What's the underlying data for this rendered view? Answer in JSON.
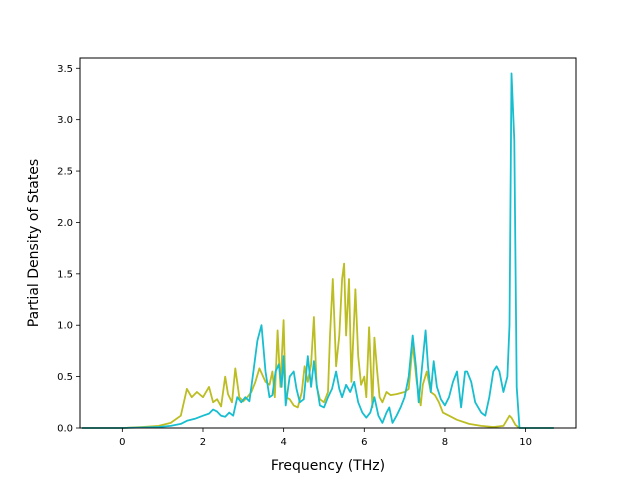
{
  "chart_data": {
    "type": "line",
    "title": "",
    "xlabel": "Frequency (THz)",
    "ylabel": "Partial Density of States",
    "xlim": [
      -1.05,
      11.25
    ],
    "ylim": [
      0.0,
      3.6
    ],
    "xticks": [
      0,
      2,
      4,
      6,
      8,
      10
    ],
    "xtick_labels": [
      "0",
      "2",
      "4",
      "6",
      "8",
      "10"
    ],
    "yticks": [
      0.0,
      0.5,
      1.0,
      1.5,
      2.0,
      2.5,
      3.0,
      3.5
    ],
    "ytick_labels": [
      "0.0",
      "0.5",
      "1.0",
      "1.5",
      "2.0",
      "2.5",
      "3.0",
      "3.5"
    ],
    "grid": false,
    "legend": "none",
    "series": [
      {
        "color": "#bcbd22",
        "points": [
          [
            -1.0,
            0.0
          ],
          [
            0.0,
            0.0
          ],
          [
            0.5,
            0.01
          ],
          [
            0.9,
            0.02
          ],
          [
            1.2,
            0.05
          ],
          [
            1.45,
            0.12
          ],
          [
            1.6,
            0.38
          ],
          [
            1.72,
            0.3
          ],
          [
            1.85,
            0.35
          ],
          [
            2.0,
            0.3
          ],
          [
            2.15,
            0.4
          ],
          [
            2.25,
            0.25
          ],
          [
            2.35,
            0.28
          ],
          [
            2.45,
            0.21
          ],
          [
            2.55,
            0.5
          ],
          [
            2.62,
            0.33
          ],
          [
            2.72,
            0.25
          ],
          [
            2.8,
            0.58
          ],
          [
            2.9,
            0.3
          ],
          [
            3.0,
            0.26
          ],
          [
            3.1,
            0.3
          ],
          [
            3.2,
            0.35
          ],
          [
            3.3,
            0.45
          ],
          [
            3.4,
            0.58
          ],
          [
            3.55,
            0.45
          ],
          [
            3.65,
            0.42
          ],
          [
            3.72,
            0.55
          ],
          [
            3.78,
            0.3
          ],
          [
            3.85,
            0.95
          ],
          [
            3.92,
            0.4
          ],
          [
            4.0,
            1.05
          ],
          [
            4.05,
            0.3
          ],
          [
            4.15,
            0.28
          ],
          [
            4.25,
            0.22
          ],
          [
            4.35,
            0.2
          ],
          [
            4.45,
            0.35
          ],
          [
            4.52,
            0.6
          ],
          [
            4.6,
            0.45
          ],
          [
            4.68,
            0.62
          ],
          [
            4.75,
            1.08
          ],
          [
            4.82,
            0.4
          ],
          [
            4.9,
            0.28
          ],
          [
            5.0,
            0.25
          ],
          [
            5.1,
            0.35
          ],
          [
            5.15,
            0.9
          ],
          [
            5.22,
            1.45
          ],
          [
            5.3,
            0.6
          ],
          [
            5.38,
            0.9
          ],
          [
            5.45,
            1.45
          ],
          [
            5.5,
            1.6
          ],
          [
            5.55,
            0.9
          ],
          [
            5.62,
            1.45
          ],
          [
            5.68,
            0.45
          ],
          [
            5.78,
            1.35
          ],
          [
            5.85,
            0.7
          ],
          [
            5.92,
            0.42
          ],
          [
            6.0,
            0.5
          ],
          [
            6.05,
            0.3
          ],
          [
            6.12,
            0.98
          ],
          [
            6.2,
            0.2
          ],
          [
            6.25,
            0.88
          ],
          [
            6.32,
            0.55
          ],
          [
            6.38,
            0.3
          ],
          [
            6.45,
            0.25
          ],
          [
            6.55,
            0.35
          ],
          [
            6.65,
            0.32
          ],
          [
            6.8,
            0.33
          ],
          [
            7.0,
            0.35
          ],
          [
            7.1,
            0.38
          ],
          [
            7.2,
            0.82
          ],
          [
            7.3,
            0.45
          ],
          [
            7.4,
            0.22
          ],
          [
            7.45,
            0.42
          ],
          [
            7.55,
            0.55
          ],
          [
            7.65,
            0.35
          ],
          [
            7.75,
            0.32
          ],
          [
            7.85,
            0.25
          ],
          [
            7.95,
            0.15
          ],
          [
            8.1,
            0.12
          ],
          [
            8.3,
            0.08
          ],
          [
            8.6,
            0.04
          ],
          [
            8.9,
            0.02
          ],
          [
            9.2,
            0.01
          ],
          [
            9.45,
            0.02
          ],
          [
            9.6,
            0.12
          ],
          [
            9.65,
            0.1
          ],
          [
            9.75,
            0.03
          ],
          [
            9.85,
            0.0
          ],
          [
            10.0,
            0.0
          ],
          [
            10.7,
            0.0
          ]
        ]
      },
      {
        "color": "#17becf",
        "points": [
          [
            -1.0,
            0.0
          ],
          [
            0.0,
            0.0
          ],
          [
            0.5,
            0.005
          ],
          [
            0.9,
            0.01
          ],
          [
            1.2,
            0.02
          ],
          [
            1.45,
            0.04
          ],
          [
            1.6,
            0.07
          ],
          [
            1.8,
            0.09
          ],
          [
            2.0,
            0.12
          ],
          [
            2.15,
            0.14
          ],
          [
            2.25,
            0.18
          ],
          [
            2.35,
            0.16
          ],
          [
            2.45,
            0.12
          ],
          [
            2.55,
            0.11
          ],
          [
            2.65,
            0.15
          ],
          [
            2.75,
            0.12
          ],
          [
            2.85,
            0.3
          ],
          [
            2.95,
            0.25
          ],
          [
            3.05,
            0.3
          ],
          [
            3.15,
            0.26
          ],
          [
            3.25,
            0.55
          ],
          [
            3.35,
            0.85
          ],
          [
            3.45,
            1.0
          ],
          [
            3.55,
            0.55
          ],
          [
            3.65,
            0.3
          ],
          [
            3.72,
            0.32
          ],
          [
            3.8,
            0.55
          ],
          [
            3.88,
            0.62
          ],
          [
            3.95,
            0.4
          ],
          [
            4.0,
            0.7
          ],
          [
            4.05,
            0.22
          ],
          [
            4.15,
            0.5
          ],
          [
            4.25,
            0.55
          ],
          [
            4.32,
            0.38
          ],
          [
            4.4,
            0.25
          ],
          [
            4.5,
            0.28
          ],
          [
            4.6,
            0.7
          ],
          [
            4.68,
            0.4
          ],
          [
            4.75,
            0.65
          ],
          [
            4.82,
            0.42
          ],
          [
            4.9,
            0.22
          ],
          [
            5.0,
            0.2
          ],
          [
            5.1,
            0.3
          ],
          [
            5.2,
            0.38
          ],
          [
            5.3,
            0.55
          ],
          [
            5.38,
            0.38
          ],
          [
            5.45,
            0.3
          ],
          [
            5.55,
            0.42
          ],
          [
            5.65,
            0.35
          ],
          [
            5.75,
            0.45
          ],
          [
            5.85,
            0.25
          ],
          [
            5.95,
            0.15
          ],
          [
            6.05,
            0.1
          ],
          [
            6.15,
            0.15
          ],
          [
            6.25,
            0.3
          ],
          [
            6.35,
            0.12
          ],
          [
            6.45,
            0.05
          ],
          [
            6.55,
            0.15
          ],
          [
            6.62,
            0.2
          ],
          [
            6.7,
            0.05
          ],
          [
            6.8,
            0.12
          ],
          [
            6.9,
            0.2
          ],
          [
            7.0,
            0.3
          ],
          [
            7.1,
            0.5
          ],
          [
            7.2,
            0.9
          ],
          [
            7.28,
            0.6
          ],
          [
            7.35,
            0.25
          ],
          [
            7.42,
            0.55
          ],
          [
            7.52,
            0.95
          ],
          [
            7.58,
            0.6
          ],
          [
            7.65,
            0.35
          ],
          [
            7.72,
            0.65
          ],
          [
            7.8,
            0.4
          ],
          [
            7.9,
            0.28
          ],
          [
            8.0,
            0.22
          ],
          [
            8.1,
            0.3
          ],
          [
            8.2,
            0.45
          ],
          [
            8.3,
            0.55
          ],
          [
            8.4,
            0.2
          ],
          [
            8.5,
            0.55
          ],
          [
            8.55,
            0.55
          ],
          [
            8.65,
            0.45
          ],
          [
            8.75,
            0.25
          ],
          [
            8.9,
            0.15
          ],
          [
            9.0,
            0.12
          ],
          [
            9.1,
            0.3
          ],
          [
            9.2,
            0.55
          ],
          [
            9.28,
            0.6
          ],
          [
            9.35,
            0.55
          ],
          [
            9.45,
            0.35
          ],
          [
            9.55,
            0.5
          ],
          [
            9.6,
            1.0
          ],
          [
            9.65,
            3.45
          ],
          [
            9.72,
            2.8
          ],
          [
            9.78,
            0.4
          ],
          [
            9.85,
            0.0
          ],
          [
            10.0,
            0.0
          ],
          [
            10.7,
            0.0
          ]
        ]
      }
    ]
  }
}
